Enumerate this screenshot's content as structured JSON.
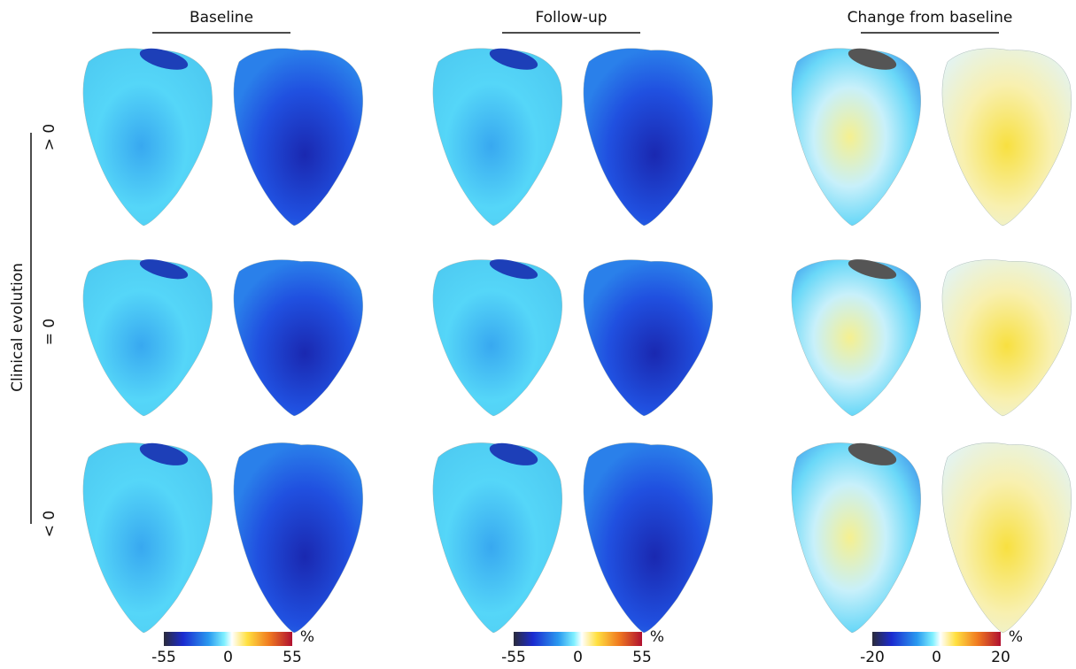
{
  "columns": [
    {
      "title": "Baseline",
      "colorbar": {
        "ticks": [
          "-55",
          "0",
          "55"
        ],
        "unit": "%"
      }
    },
    {
      "title": "Follow-up",
      "colorbar": {
        "ticks": [
          "-55",
          "0",
          "55"
        ],
        "unit": "%"
      }
    },
    {
      "title": "Change from baseline",
      "colorbar": {
        "ticks": [
          "-20",
          "0",
          "20"
        ],
        "unit": "%"
      }
    }
  ],
  "rows": {
    "title": "Clinical evolution",
    "labels": [
      "> 0",
      "= 0",
      "< 0"
    ]
  }
}
